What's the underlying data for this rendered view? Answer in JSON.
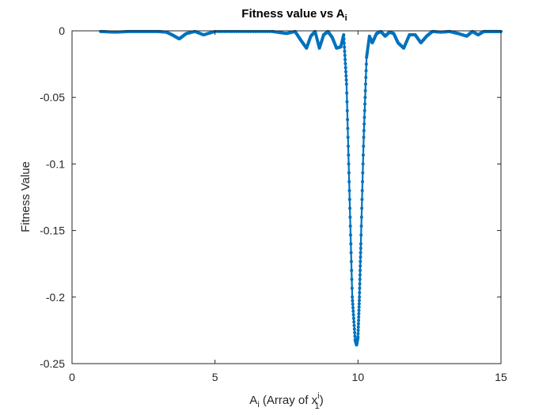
{
  "chart_data": {
    "type": "scatter",
    "title_main": "Fitness value vs A",
    "title_sub": "i",
    "xlabel_pre": "A",
    "xlabel_pre_sub": "i",
    "xlabel_mid": " (Array of x",
    "xlabel_sup": "i",
    "xlabel_sub": "1",
    "xlabel_post": ")",
    "ylabel": "Fitness Value",
    "xlim": [
      0,
      15
    ],
    "ylim": [
      -0.25,
      0
    ],
    "xticks": [
      0,
      5,
      10,
      15
    ],
    "xtick_labels": [
      "0",
      "5",
      "10",
      "15"
    ],
    "yticks": [
      0,
      -0.05,
      -0.1,
      -0.15,
      -0.2,
      -0.25
    ],
    "ytick_labels": [
      "0",
      "-0.05",
      "-0.1",
      "-0.15",
      "-0.2",
      "-0.25"
    ],
    "grid": false,
    "color": "#0072BD",
    "x_range": [
      1,
      15
    ],
    "series": [
      {
        "x": [
          1.0,
          1.5,
          2.0,
          2.5,
          3.0,
          3.3,
          3.5,
          3.75,
          4.0,
          4.3,
          4.6,
          5.0,
          6.0,
          7.0,
          7.5,
          7.8,
          8.0,
          8.2,
          8.35,
          8.5,
          8.65,
          8.8,
          8.95,
          9.1,
          9.25,
          9.4,
          9.5,
          9.6,
          9.7,
          9.8,
          9.9,
          9.95,
          10.0,
          10.05,
          10.1,
          10.2,
          10.3,
          10.4,
          10.5,
          10.65,
          10.8,
          10.95,
          11.1,
          11.25,
          11.4,
          11.6,
          11.8,
          12.0,
          12.2,
          12.4,
          12.6,
          12.9,
          13.2,
          13.5,
          13.8,
          14.0,
          14.2,
          14.4,
          14.7,
          15.0
        ],
        "y": [
          -0.0005,
          -0.001,
          -0.0005,
          -0.0005,
          -0.0005,
          -0.001,
          -0.003,
          -0.006,
          -0.002,
          -0.0005,
          -0.003,
          -0.0005,
          -0.0005,
          -0.0005,
          -0.002,
          -0.0005,
          -0.007,
          -0.013,
          -0.004,
          -0.0005,
          -0.013,
          -0.003,
          -0.0005,
          -0.005,
          -0.013,
          -0.012,
          -0.003,
          -0.04,
          -0.12,
          -0.2,
          -0.232,
          -0.236,
          -0.23,
          -0.2,
          -0.16,
          -0.08,
          -0.02,
          -0.004,
          -0.009,
          -0.002,
          -0.0005,
          -0.004,
          -0.001,
          -0.002,
          -0.009,
          -0.013,
          -0.003,
          -0.003,
          -0.009,
          -0.004,
          -0.0005,
          -0.001,
          -0.0005,
          -0.002,
          -0.004,
          -0.0005,
          -0.003,
          -0.0005,
          -0.0005,
          -0.0005
        ]
      }
    ]
  }
}
